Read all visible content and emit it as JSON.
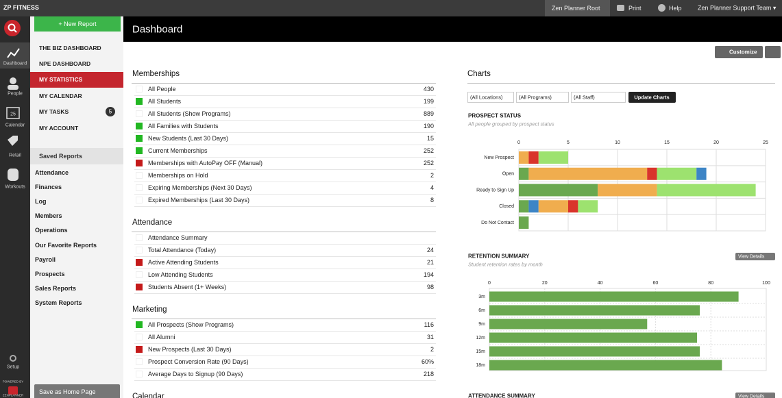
{
  "topbar": {
    "brand": "ZP FITNESS",
    "items": [
      "Zen Planner Root",
      "Print",
      "Help",
      "Zen Planner Support Team ▾"
    ]
  },
  "sidebar": {
    "icons": [
      "Dashboard",
      "People",
      "Calendar",
      "Retail",
      "Workouts"
    ],
    "calendar_day": "25",
    "setup": "Setup",
    "powered_by": "POWERED BY",
    "logo_text": "ZENPLANNER"
  },
  "nav": {
    "new_report": "+ New Report",
    "links": [
      {
        "label": "THE BIZ DASHBOARD"
      },
      {
        "label": "NPE DASHBOARD"
      },
      {
        "label": "MY STATISTICS",
        "active": true
      },
      {
        "label": "MY CALENDAR"
      },
      {
        "label": "MY TASKS",
        "badge": "5"
      },
      {
        "label": "MY ACCOUNT"
      }
    ],
    "saved_header": "Saved Reports",
    "saved": [
      "Attendance",
      "Finances",
      "Log",
      "Members",
      "Operations",
      "Our Favorite Reports",
      "Payroll",
      "Prospects",
      "Sales Reports",
      "System Reports"
    ],
    "save_home": "Save as Home Page"
  },
  "header": {
    "title": "Dashboard",
    "customize": "Customize"
  },
  "sections": [
    {
      "title": "Memberships",
      "rows": [
        {
          "label": "All People",
          "value": "430"
        },
        {
          "label": "All Students",
          "value": "199",
          "indicator": "#22b722"
        },
        {
          "label": "All Students (Show Programs)",
          "value": "889"
        },
        {
          "label": "All Families with Students",
          "value": "190",
          "indicator": "#22b722"
        },
        {
          "label": "New Students (Last 30 Days)",
          "value": "15",
          "indicator": "#22b722"
        },
        {
          "label": "Current Memberships",
          "value": "252",
          "indicator": "#22b722"
        },
        {
          "label": "Memberships with AutoPay OFF (Manual)",
          "value": "252",
          "indicator": "#c41a1a"
        },
        {
          "label": "Memberships on Hold",
          "value": "2"
        },
        {
          "label": "Expiring Memberships (Next 30 Days)",
          "value": "4"
        },
        {
          "label": "Expired Memberships (Last 30 Days)",
          "value": "8"
        }
      ]
    },
    {
      "title": "Attendance",
      "rows": [
        {
          "label": "Attendance Summary"
        },
        {
          "label": "Total Attendance (Today)",
          "value": "24"
        },
        {
          "label": "Active Attending Students",
          "value": "21",
          "indicator": "#c41a1a"
        },
        {
          "label": "Low Attending Students",
          "value": "194"
        },
        {
          "label": "Students Absent (1+ Weeks)",
          "value": "98",
          "indicator": "#c41a1a"
        }
      ]
    },
    {
      "title": "Marketing",
      "rows": [
        {
          "label": "All Prospects (Show Programs)",
          "value": "116",
          "indicator": "#22b722"
        },
        {
          "label": "All Alumni",
          "value": "31"
        },
        {
          "label": "New Prospects (Last 30 Days)",
          "value": "2",
          "indicator": "#c41a1a"
        },
        {
          "label": "Prospect Conversion Rate (90 Days)",
          "value": "60%"
        },
        {
          "label": "Average Days to Signup (90 Days)",
          "value": "218"
        }
      ]
    },
    {
      "title": "Calendar",
      "rows": []
    }
  ],
  "charts_panel": {
    "title": "Charts",
    "filters": [
      "(All Locations)",
      "(All Programs)",
      "(All Staff)"
    ],
    "update": "Update Charts"
  },
  "chart_data": [
    {
      "type": "bar",
      "stacked": true,
      "horizontal": true,
      "title": "PROSPECT STATUS",
      "subtitle": "All people grouped by prospect status",
      "categories": [
        "New Prospect",
        "Open",
        "Ready to Sign Up",
        "Closed",
        "Do Not Contact"
      ],
      "series": [
        {
          "color": "#6aa84f",
          "values": [
            0,
            1,
            8,
            1,
            1
          ]
        },
        {
          "color": "#3d85c6",
          "values": [
            0,
            0,
            0,
            1,
            0
          ]
        },
        {
          "color": "#f0ad4e",
          "values": [
            1,
            12,
            6,
            3,
            0
          ]
        },
        {
          "color": "#d9342b",
          "values": [
            1,
            1,
            0,
            1,
            0
          ]
        },
        {
          "color": "#9de26f",
          "values": [
            3,
            4,
            10,
            2,
            0
          ]
        },
        {
          "color": "#3d85c6",
          "values": [
            0,
            1,
            0,
            0,
            0
          ]
        }
      ],
      "xlim": [
        0,
        25
      ],
      "xticks": [
        0,
        5,
        10,
        15,
        20,
        25
      ],
      "grid": true
    },
    {
      "type": "bar",
      "horizontal": true,
      "title": "RETENTION SUMMARY",
      "subtitle": "Student retention rates by month",
      "link": "View Details",
      "categories": [
        "3m",
        "6m",
        "9m",
        "12m",
        "15m",
        "18m"
      ],
      "values": [
        90,
        76,
        57,
        75,
        76,
        84
      ],
      "color": "#6aa84f",
      "xlim": [
        0,
        100
      ],
      "xticks": [
        0,
        20,
        40,
        60,
        80,
        100
      ],
      "grid": true
    },
    {
      "type": "bar",
      "title": "ATTENDANCE SUMMARY",
      "link": "View Details"
    }
  ]
}
